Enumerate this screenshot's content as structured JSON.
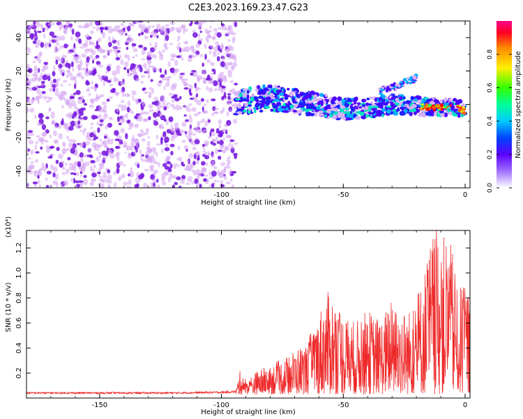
{
  "title": "C2E3.2023.169.23.47.G23",
  "colors": {
    "snr_line": "#ee2a2a",
    "scatter_light": "#d3a3f2",
    "scatter_dark": "#7a1ee0",
    "axis": "#000000"
  },
  "chart_data": [
    {
      "type": "heatmap",
      "title": "C2E3.2023.169.23.47.G23",
      "xlabel": "Height of straight line (km)",
      "ylabel": "Frequency (Hz)",
      "xlim": [
        -180,
        2
      ],
      "ylim": [
        -50,
        50
      ],
      "x_ticks": [
        "-150",
        "-100",
        "-50",
        "0"
      ],
      "x_tick_values": [
        -150,
        -100,
        -50,
        0
      ],
      "y_ticks": [
        "-40",
        "-20",
        "0",
        "20",
        "40"
      ],
      "y_tick_values": [
        -40,
        -20,
        0,
        20,
        40
      ],
      "colorbar": {
        "label": "Normalized spectral amplitude",
        "range": [
          0,
          1
        ],
        "ticks": [
          "0.0",
          "0.2",
          "0.4",
          "0.6",
          "0.8"
        ],
        "tick_values": [
          0.0,
          0.2,
          0.4,
          0.6,
          0.8
        ]
      },
      "noise_region_x": [
        -180,
        -94
      ],
      "signal_track": {
        "x": [
          -94,
          -80,
          -70,
          -60,
          -50,
          -40,
          -30,
          -20,
          -10,
          -5,
          0
        ],
        "y": [
          1,
          4,
          2,
          0,
          -3,
          -2,
          0,
          -1,
          -2,
          -1,
          -4
        ],
        "branch": {
          "x": [
            -35,
            -30,
            -25,
            -20
          ],
          "y": [
            8,
            10,
            13,
            16
          ]
        }
      }
    },
    {
      "type": "line",
      "xlabel": "Height of straight line (km)",
      "ylabel": "SNR (10 * v/v)",
      "y_multiplier": "(x10⁴)",
      "xlim": [
        -180,
        2
      ],
      "ylim": [
        0,
        13400
      ],
      "x_ticks": [
        "-150",
        "-100",
        "-50",
        "0"
      ],
      "x_tick_values": [
        -150,
        -100,
        -50,
        0
      ],
      "y_ticks": [
        "0.2",
        "0.4",
        "0.6",
        "0.8",
        "1.0",
        "1.2"
      ],
      "y_tick_values": [
        2000,
        4000,
        6000,
        8000,
        10000,
        12000
      ],
      "series": [
        {
          "x": [
            -180,
            -150,
            -120,
            -100,
            -94,
            -92,
            -90,
            -85,
            -80,
            -75,
            -70,
            -65,
            -60,
            -58,
            -55,
            -50,
            -45,
            -40,
            -35,
            -30,
            -25,
            -22,
            -20,
            -18,
            -15,
            -13,
            -12,
            -10,
            -8,
            -5,
            -3,
            -1,
            0,
            2
          ],
          "values": [
            400,
            400,
            400,
            450,
            500,
            2200,
            1200,
            1900,
            2400,
            2800,
            3600,
            4200,
            6500,
            7800,
            8400,
            6500,
            5800,
            6800,
            6000,
            7600,
            6800,
            6800,
            8200,
            9000,
            11600,
            13300,
            13400,
            12200,
            13000,
            11500,
            7800,
            9400,
            8500,
            8800
          ]
        }
      ]
    }
  ]
}
